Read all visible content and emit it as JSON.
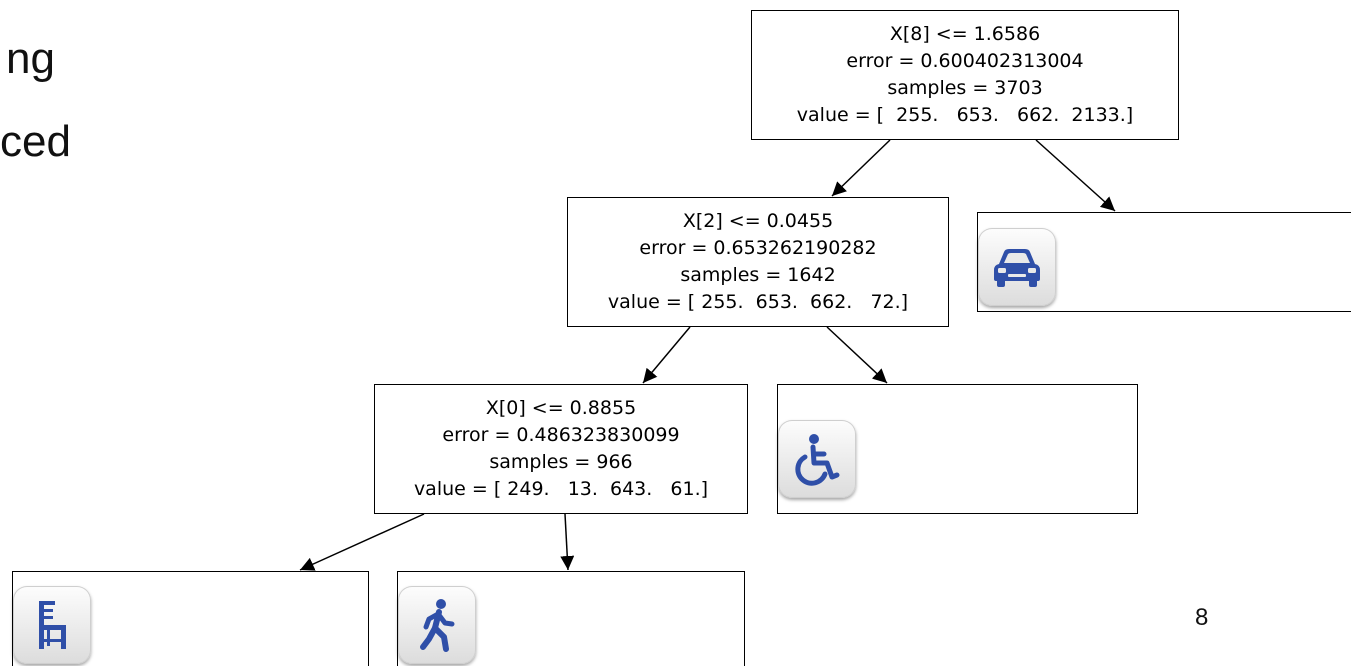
{
  "background_text": [
    "ng",
    "ced"
  ],
  "tree": {
    "root": {
      "lines": [
        "X[8] <= 1.6586",
        "error = 0.600402313004",
        "samples = 3703",
        "value = [  255.   653.   662.  2133.]"
      ]
    },
    "left": {
      "lines": [
        "X[2] <= 0.0455",
        "error = 0.653262190282",
        "samples = 1642",
        "value = [ 255.  653.  662.   72.]"
      ]
    },
    "left_left": {
      "lines": [
        "X[0] <= 0.8855",
        "error = 0.486323830099",
        "samples = 966",
        "value = [ 249.   13.  643.   61.]"
      ]
    },
    "leaves": [
      {
        "icon": "car-icon"
      },
      {
        "icon": "wheelchair-icon"
      },
      {
        "icon": "chair-icon"
      },
      {
        "icon": "walking-person-icon"
      }
    ]
  },
  "colors": {
    "icon_blue": "#2f4fa8"
  },
  "page_number": "8"
}
